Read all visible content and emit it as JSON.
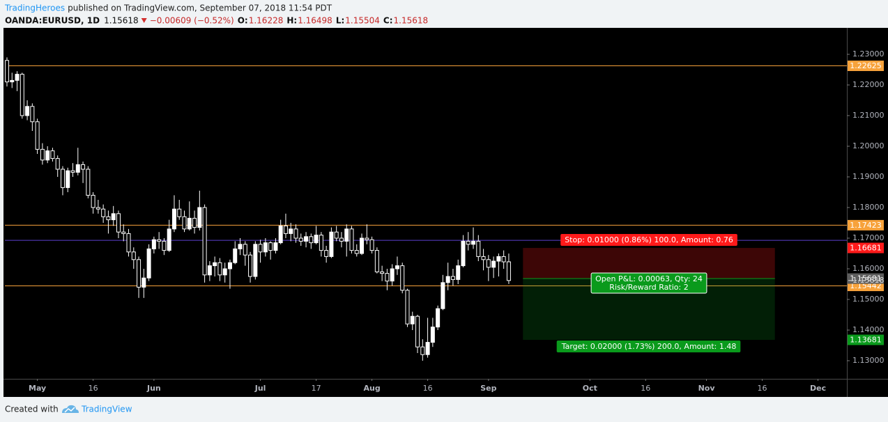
{
  "header": {
    "author": "TradingHeroes",
    "published": "published on TradingView.com, September 07, 2018 11:54 PDT",
    "symbol": "OANDA:EURUSD, 1D",
    "change": "−0.00609 (−0.52%)",
    "o_label": "O:",
    "h_label": "H:",
    "l_label": "L:",
    "c_label": "C:"
  },
  "chart_data": {
    "type": "candlestick",
    "up_color": "#ffffff",
    "down_color": "#000000",
    "wick_color": "#ffffff",
    "open": [
      1.228,
      1.221,
      1.2215,
      1.2235,
      1.21,
      1.213,
      1.208,
      1.199,
      1.1955,
      1.1985,
      1.196,
      1.1925,
      1.1865,
      1.192,
      1.1915,
      1.194,
      1.1925,
      1.184,
      1.18,
      1.1795,
      1.177,
      1.176,
      1.178,
      1.172,
      1.1715,
      1.1655,
      1.163,
      1.154,
      1.157,
      1.1665,
      1.1695,
      1.169,
      1.166,
      1.173,
      1.1795,
      1.177,
      1.173,
      1.1765,
      1.1735,
      1.18,
      1.158,
      1.161,
      1.162,
      1.158,
      1.16,
      1.162,
      1.1665,
      1.168,
      1.1645,
      1.1575,
      1.168,
      1.1655,
      1.1685,
      1.166,
      1.1685,
      1.174,
      1.1715,
      1.173,
      1.17,
      1.169,
      1.1705,
      1.1685,
      1.171,
      1.166,
      1.164,
      1.172,
      1.17,
      1.169,
      1.173,
      1.166,
      1.165,
      1.17,
      1.1695,
      1.166,
      1.159,
      1.1585,
      1.156,
      1.16,
      1.161,
      1.153,
      1.142,
      1.1445,
      1.1345,
      1.132,
      1.136,
      1.141,
      1.147,
      1.1555,
      1.1575,
      1.1565,
      1.161,
      1.169,
      1.168,
      1.169,
      1.164,
      1.163,
      1.1605,
      1.1625,
      1.164,
      1.16228
    ],
    "high": [
      1.229,
      1.224,
      1.2245,
      1.224,
      1.215,
      1.214,
      1.209,
      1.201,
      1.2,
      1.1995,
      1.197,
      1.1935,
      1.193,
      1.1945,
      1.1995,
      1.195,
      1.1935,
      1.185,
      1.1825,
      1.181,
      1.179,
      1.1805,
      1.179,
      1.1745,
      1.173,
      1.167,
      1.164,
      1.16,
      1.168,
      1.1705,
      1.172,
      1.17,
      1.176,
      1.184,
      1.1825,
      1.179,
      1.182,
      1.179,
      1.1855,
      1.181,
      1.1625,
      1.164,
      1.1635,
      1.162,
      1.163,
      1.169,
      1.17,
      1.169,
      1.1655,
      1.169,
      1.1695,
      1.17,
      1.169,
      1.17,
      1.176,
      1.178,
      1.175,
      1.1745,
      1.1715,
      1.172,
      1.1715,
      1.174,
      1.172,
      1.1675,
      1.1735,
      1.174,
      1.172,
      1.1745,
      1.174,
      1.168,
      1.1715,
      1.1745,
      1.1705,
      1.167,
      1.161,
      1.16,
      1.1615,
      1.164,
      1.162,
      1.1535,
      1.146,
      1.145,
      1.137,
      1.144,
      1.144,
      1.148,
      1.158,
      1.162,
      1.16,
      1.163,
      1.171,
      1.172,
      1.1735,
      1.171,
      1.1665,
      1.1645,
      1.164,
      1.165,
      1.166,
      1.16498
    ],
    "low": [
      1.2195,
      1.219,
      1.218,
      1.209,
      1.2085,
      1.205,
      1.1975,
      1.194,
      1.1945,
      1.195,
      1.19,
      1.184,
      1.185,
      1.19,
      1.1905,
      1.188,
      1.183,
      1.178,
      1.178,
      1.175,
      1.1715,
      1.174,
      1.17,
      1.169,
      1.164,
      1.16,
      1.1505,
      1.1505,
      1.156,
      1.165,
      1.1665,
      1.1645,
      1.1655,
      1.172,
      1.176,
      1.172,
      1.1725,
      1.1715,
      1.1725,
      1.1555,
      1.156,
      1.1575,
      1.156,
      1.1555,
      1.1535,
      1.1615,
      1.1645,
      1.161,
      1.1555,
      1.1565,
      1.162,
      1.164,
      1.163,
      1.165,
      1.168,
      1.17,
      1.169,
      1.1685,
      1.1675,
      1.167,
      1.1665,
      1.168,
      1.164,
      1.162,
      1.1635,
      1.169,
      1.167,
      1.164,
      1.165,
      1.164,
      1.1645,
      1.168,
      1.165,
      1.1585,
      1.156,
      1.153,
      1.1545,
      1.158,
      1.152,
      1.141,
      1.14,
      1.1325,
      1.13,
      1.131,
      1.1345,
      1.14,
      1.1465,
      1.153,
      1.1545,
      1.155,
      1.1605,
      1.166,
      1.1665,
      1.1625,
      1.1595,
      1.156,
      1.157,
      1.1575,
      1.16,
      1.15504
    ],
    "close": [
      1.221,
      1.2215,
      1.2235,
      1.21,
      1.213,
      1.208,
      1.199,
      1.1955,
      1.1985,
      1.196,
      1.1925,
      1.1865,
      1.192,
      1.1915,
      1.194,
      1.1925,
      1.184,
      1.18,
      1.1795,
      1.177,
      1.176,
      1.178,
      1.172,
      1.1715,
      1.1655,
      1.163,
      1.154,
      1.157,
      1.1665,
      1.1695,
      1.169,
      1.166,
      1.173,
      1.1795,
      1.177,
      1.173,
      1.1765,
      1.1735,
      1.18,
      1.158,
      1.161,
      1.162,
      1.158,
      1.16,
      1.162,
      1.1665,
      1.168,
      1.1645,
      1.1575,
      1.168,
      1.1655,
      1.1685,
      1.166,
      1.1685,
      1.174,
      1.1715,
      1.173,
      1.17,
      1.169,
      1.1705,
      1.1685,
      1.171,
      1.166,
      1.164,
      1.172,
      1.17,
      1.169,
      1.173,
      1.166,
      1.165,
      1.17,
      1.1695,
      1.166,
      1.159,
      1.1585,
      1.156,
      1.16,
      1.161,
      1.153,
      1.142,
      1.1445,
      1.1345,
      1.132,
      1.136,
      1.141,
      1.147,
      1.1555,
      1.1575,
      1.1565,
      1.161,
      1.169,
      1.168,
      1.169,
      1.164,
      1.163,
      1.1605,
      1.1625,
      1.164,
      1.16227,
      1.15618
    ],
    "xlim": [
      -0.41,
      165.7
    ],
    "xticks": [
      {
        "value": 6,
        "label": "May"
      },
      {
        "value": 17,
        "label": "16"
      },
      {
        "value": 29,
        "label": "Jun"
      },
      {
        "value": 50,
        "label": "Jul"
      },
      {
        "value": 61,
        "label": "17"
      },
      {
        "value": 72,
        "label": "Aug"
      },
      {
        "value": 83,
        "label": "16"
      },
      {
        "value": 95,
        "label": "Sep"
      },
      {
        "value": 115,
        "label": "Oct"
      },
      {
        "value": 126,
        "label": "16"
      },
      {
        "value": 138,
        "label": "Nov"
      },
      {
        "value": 149,
        "label": "16"
      },
      {
        "value": 160,
        "label": "Dec"
      }
    ],
    "ylim": [
      1.12409,
      1.23864
    ],
    "yticks": [
      {
        "value": 1.13,
        "label": "1.13000"
      },
      {
        "value": 1.14,
        "label": "1.14000"
      },
      {
        "value": 1.15,
        "label": "1.15000"
      },
      {
        "value": 1.16,
        "label": "1.16000"
      },
      {
        "value": 1.17,
        "label": "1.17000"
      },
      {
        "value": 1.18,
        "label": "1.18000"
      },
      {
        "value": 1.19,
        "label": "1.19000"
      },
      {
        "value": 1.2,
        "label": "1.20000"
      },
      {
        "value": 1.21,
        "label": "1.21000"
      },
      {
        "value": 1.22,
        "label": "1.22000"
      },
      {
        "value": 1.23,
        "label": "1.23000"
      }
    ],
    "levels": [
      1.22625,
      1.17423,
      1.15442
    ],
    "level_color": "#f7a23b",
    "ref_line": {
      "value": 1.1693,
      "color": "#5b3fd0"
    },
    "position": {
      "start": 101.8,
      "end": 151.5,
      "entry": 1.15681,
      "stop": 1.16681,
      "target": 1.13681,
      "entry_color": "#5d5d5d",
      "stop_color": "#ff1a1a",
      "target_color": "#0a9a1c",
      "stop_text": "Stop: 0.01000 (0.86%) 100.0, Amount: 0.76",
      "pnl_text": "Open P&L: 0.00063, Qty: 24",
      "rr_text": "Risk/Reward Ratio: 2",
      "target_text": "Target: 0.02000 (1.73%) 200.0, Amount: 1.48"
    }
  },
  "footer": {
    "created": "Created with",
    "brand": "TradingView"
  }
}
